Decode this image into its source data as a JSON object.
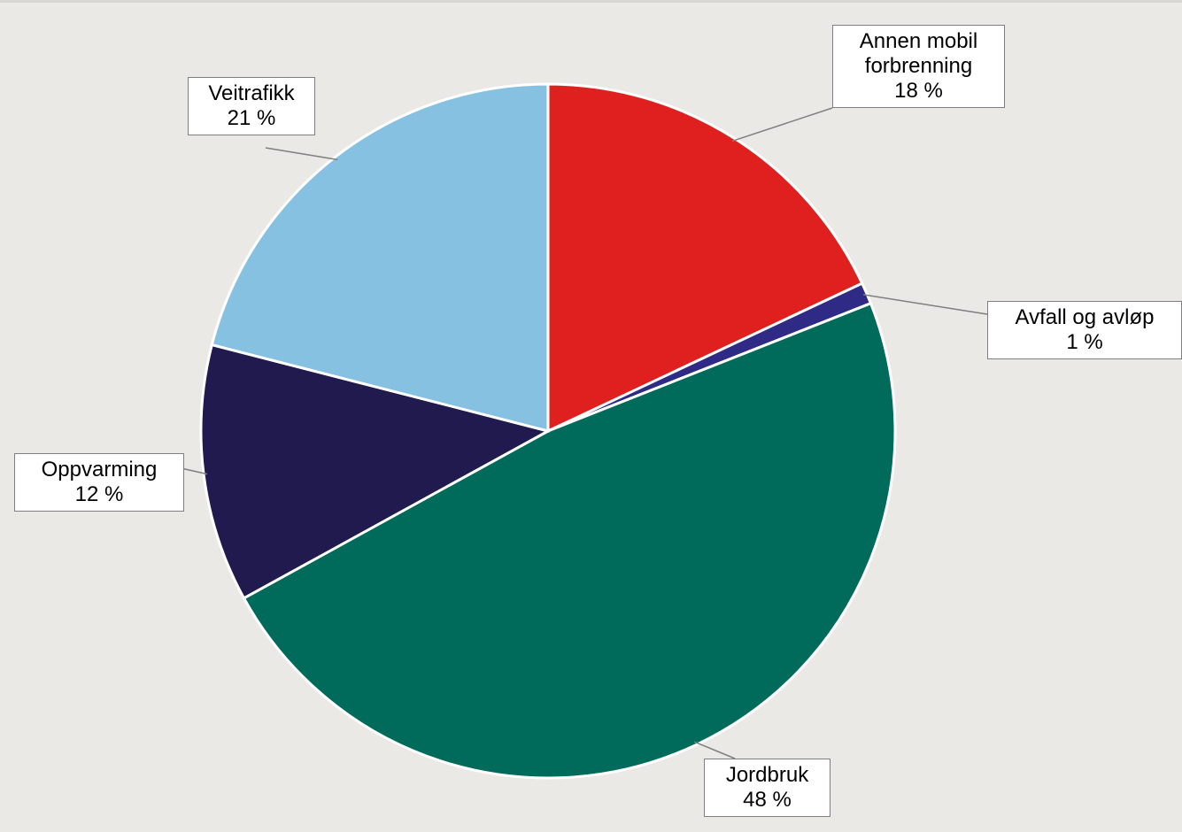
{
  "chart_data": {
    "type": "pie",
    "categories": [
      "Annen mobil forbrenning",
      "Avfall og avløp",
      "Jordbruk",
      "Oppvarming",
      "Veitrafikk"
    ],
    "values": [
      18,
      1,
      48,
      12,
      21
    ],
    "value_labels": [
      "18 %",
      "1 %",
      "48 %",
      "12 %",
      "21 %"
    ],
    "colors": [
      "#e0201f",
      "#2e2a86",
      "#006b5b",
      "#201a4f",
      "#86c1e2"
    ]
  }
}
